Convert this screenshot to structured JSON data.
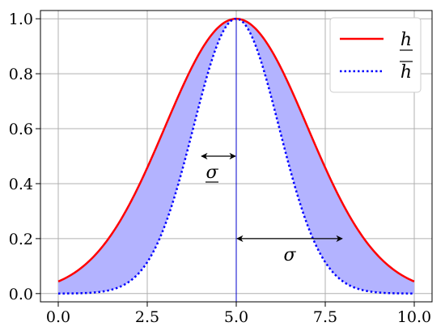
{
  "chart_data": {
    "type": "area",
    "title": "",
    "xlabel": "",
    "ylabel": "",
    "xlim": [
      -0.5,
      10.5
    ],
    "ylim": [
      -0.03,
      1.03
    ],
    "grid": true,
    "legend_position": "top-right",
    "x_ticks": [
      0,
      2.5,
      5,
      7.5,
      10
    ],
    "x_tick_labels": [
      "0.0",
      "2.5",
      "5.0",
      "7.5",
      "10.0"
    ],
    "y_ticks": [
      0,
      0.2,
      0.4,
      0.6,
      0.8,
      1.0
    ],
    "y_tick_labels": [
      "0.0",
      "0.2",
      "0.4",
      "0.6",
      "0.8",
      "1.0"
    ],
    "series": [
      {
        "name": "h",
        "label_decoration": "underline",
        "style": "solid",
        "color": "#ff0000",
        "center": 5,
        "sigma": 2.0
      },
      {
        "name": "h",
        "label_decoration": "overline",
        "style": "dotted",
        "color": "#0000ff",
        "center": 5,
        "sigma": 1.2
      }
    ],
    "fill_between_color": "#b3b3ff",
    "vertical_line": {
      "x": 5,
      "color": "#0000cc"
    },
    "annotations": [
      {
        "text": "σ",
        "decoration": "underline",
        "from_x": 4,
        "to_x": 5,
        "y": 0.5
      },
      {
        "text": "σ",
        "decoration": "none",
        "from_x": 5,
        "to_x": 8,
        "y": 0.2
      }
    ]
  }
}
